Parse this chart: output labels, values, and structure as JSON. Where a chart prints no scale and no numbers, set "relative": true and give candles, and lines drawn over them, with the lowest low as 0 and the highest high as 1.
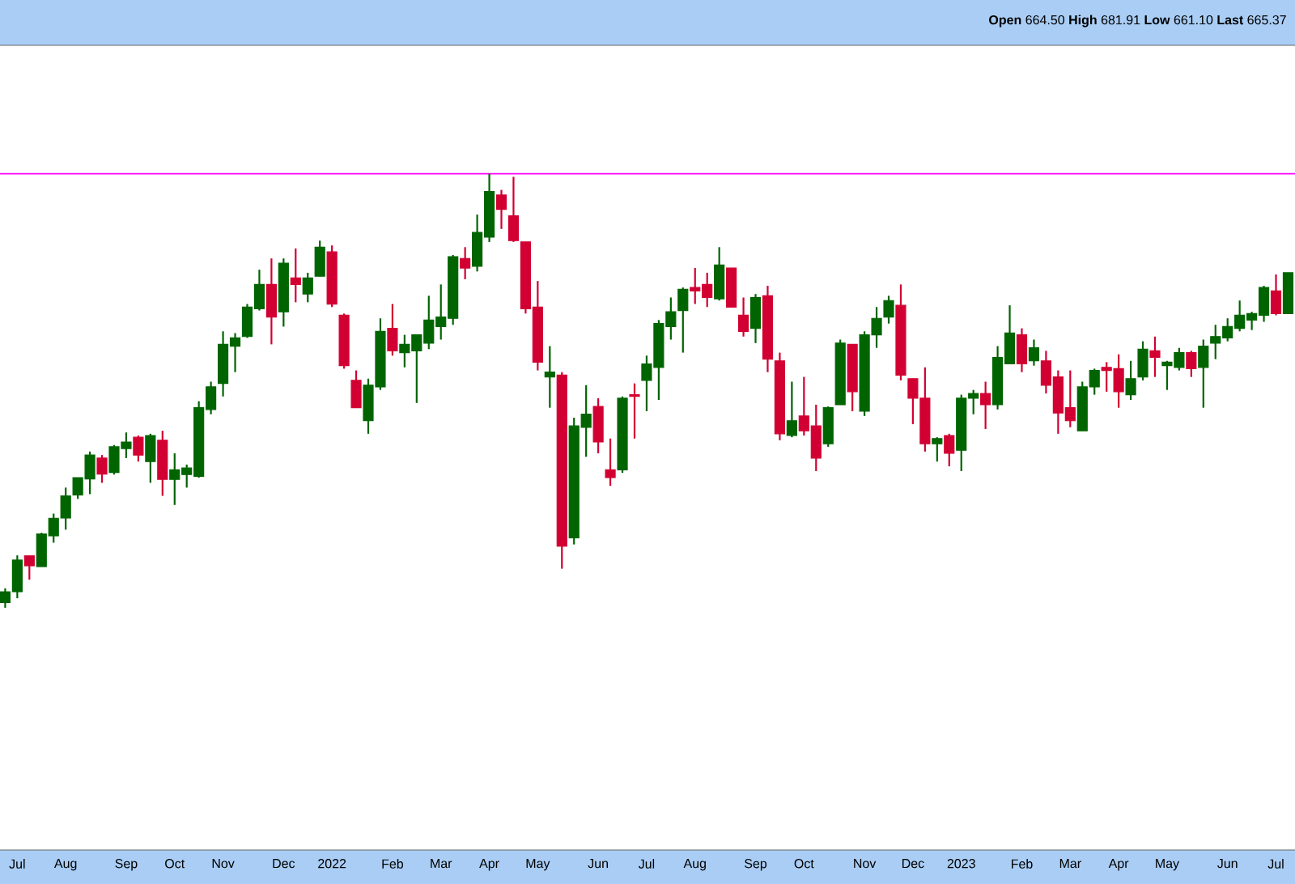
{
  "chart_data": {
    "type": "candlestick",
    "relative": true,
    "annotations": [
      "**Open** 664.50  **High** 681.91  **Low** 661.10  **Last** 665.37"
    ],
    "x": [
      "2021-06-28",
      "2021-07-05",
      "2021-07-12",
      "2021-07-19",
      "2021-07-26",
      "2021-08-02",
      "2021-08-09",
      "2021-08-16",
      "2021-08-23",
      "2021-08-30",
      "2021-09-06",
      "2021-09-13",
      "2021-09-20",
      "2021-09-27",
      "2021-10-04",
      "2021-10-11",
      "2021-10-18",
      "2021-10-25",
      "2021-11-01",
      "2021-11-08",
      "2021-11-15",
      "2021-11-22",
      "2021-11-29",
      "2021-12-06",
      "2021-12-13",
      "2021-12-20",
      "2021-12-27",
      "2022-01-03",
      "2022-01-10",
      "2022-01-17",
      "2022-01-24",
      "2022-01-31",
      "2022-02-07",
      "2022-02-14",
      "2022-02-21",
      "2022-02-28",
      "2022-03-07",
      "2022-03-14",
      "2022-03-21",
      "2022-03-28",
      "2022-04-04",
      "2022-04-11",
      "2022-04-18",
      "2022-04-25",
      "2022-05-02",
      "2022-05-09",
      "2022-05-16",
      "2022-05-23",
      "2022-05-30",
      "2022-06-06",
      "2022-06-13",
      "2022-06-20",
      "2022-06-27",
      "2022-07-04",
      "2022-07-11",
      "2022-07-18",
      "2022-07-25",
      "2022-08-01",
      "2022-08-08",
      "2022-08-15",
      "2022-08-22",
      "2022-08-29",
      "2022-09-05",
      "2022-09-12",
      "2022-09-19",
      "2022-09-26",
      "2022-10-03",
      "2022-10-10",
      "2022-10-17",
      "2022-10-24",
      "2022-10-31",
      "2022-11-07",
      "2022-11-14",
      "2022-11-21",
      "2022-11-28",
      "2022-12-05",
      "2022-12-12",
      "2022-12-19",
      "2022-12-26",
      "2023-01-02",
      "2023-01-09",
      "2023-01-16",
      "2023-01-23",
      "2023-01-30",
      "2023-02-06",
      "2023-02-13",
      "2023-02-20",
      "2023-02-27",
      "2023-03-06",
      "2023-03-13",
      "2023-03-20",
      "2023-03-27",
      "2023-04-03",
      "2023-04-10",
      "2023-04-17",
      "2023-04-24",
      "2023-05-01",
      "2023-05-08",
      "2023-05-15",
      "2023-05-22",
      "2023-05-29",
      "2023-06-05",
      "2023-06-12",
      "2023-06-19",
      "2023-06-26",
      "2023-07-03",
      "2023-07-10"
    ],
    "ohlc": [
      [
        0.012,
        0.045,
        0,
        0.037
      ],
      [
        0.037,
        0.121,
        0.022,
        0.11
      ],
      [
        0.12,
        0.12,
        0.065,
        0.097
      ],
      [
        0.095,
        0.173,
        0.095,
        0.17
      ],
      [
        0.166,
        0.217,
        0.15,
        0.206
      ],
      [
        0.207,
        0.277,
        0.18,
        0.258
      ],
      [
        0.26,
        0.3,
        0.251,
        0.3
      ],
      [
        0.297,
        0.36,
        0.262,
        0.352
      ],
      [
        0.345,
        0.352,
        0.288,
        0.308
      ],
      [
        0.312,
        0.375,
        0.307,
        0.371
      ],
      [
        0.367,
        0.404,
        0.345,
        0.382
      ],
      [
        0.393,
        0.397,
        0.337,
        0.352
      ],
      [
        0.337,
        0.401,
        0.288,
        0.397
      ],
      [
        0.386,
        0.408,
        0.258,
        0.296
      ],
      [
        0.296,
        0.356,
        0.237,
        0.318
      ],
      [
        0.307,
        0.33,
        0.277,
        0.322
      ],
      [
        0.303,
        0.476,
        0.3,
        0.461
      ],
      [
        0.457,
        0.521,
        0.446,
        0.509
      ],
      [
        0.517,
        0.637,
        0.487,
        0.607
      ],
      [
        0.603,
        0.633,
        0.543,
        0.622
      ],
      [
        0.625,
        0.7,
        0.622,
        0.693
      ],
      [
        0.689,
        0.779,
        0.685,
        0.745
      ],
      [
        0.745,
        0.805,
        0.607,
        0.67
      ],
      [
        0.682,
        0.805,
        0.648,
        0.794
      ],
      [
        0.76,
        0.828,
        0.704,
        0.745
      ],
      [
        0.723,
        0.772,
        0.704,
        0.76
      ],
      [
        0.764,
        0.846,
        0.764,
        0.831
      ],
      [
        0.82,
        0.835,
        0.693,
        0.7
      ],
      [
        0.674,
        0.678,
        0.551,
        0.558
      ],
      [
        0.524,
        0.547,
        0.461,
        0.461
      ],
      [
        0.431,
        0.528,
        0.401,
        0.513
      ],
      [
        0.509,
        0.667,
        0.502,
        0.637
      ],
      [
        0.644,
        0.7,
        0.581,
        0.592
      ],
      [
        0.588,
        0.629,
        0.554,
        0.607
      ],
      [
        0.592,
        0.629,
        0.472,
        0.629
      ],
      [
        0.61,
        0.719,
        0.596,
        0.663
      ],
      [
        0.648,
        0.745,
        0.618,
        0.67
      ],
      [
        0.667,
        0.813,
        0.652,
        0.809
      ],
      [
        0.805,
        0.831,
        0.757,
        0.783
      ],
      [
        0.787,
        0.906,
        0.775,
        0.865
      ],
      [
        0.854,
        1,
        0.843,
        0.959
      ],
      [
        0.951,
        0.963,
        0.873,
        0.918
      ],
      [
        0.903,
        0.993,
        0.843,
        0.846
      ],
      [
        0.843,
        0.843,
        0.678,
        0.689
      ],
      [
        0.693,
        0.753,
        0.547,
        0.566
      ],
      [
        0.532,
        0.603,
        0.461,
        0.543
      ],
      [
        0.536,
        0.543,
        0.09,
        0.142
      ],
      [
        0.161,
        0.438,
        0.146,
        0.419
      ],
      [
        0.416,
        0.513,
        0.348,
        0.446
      ],
      [
        0.464,
        0.483,
        0.356,
        0.382
      ],
      [
        0.318,
        0.39,
        0.281,
        0.3
      ],
      [
        0.318,
        0.487,
        0.311,
        0.483
      ],
      [
        0.491,
        0.517,
        0.39,
        0.487
      ],
      [
        0.524,
        0.581,
        0.453,
        0.562
      ],
      [
        0.554,
        0.663,
        0.479,
        0.655
      ],
      [
        0.648,
        0.715,
        0.618,
        0.682
      ],
      [
        0.685,
        0.738,
        0.588,
        0.734
      ],
      [
        0.738,
        0.783,
        0.7,
        0.73
      ],
      [
        0.745,
        0.772,
        0.693,
        0.715
      ],
      [
        0.712,
        0.831,
        0.708,
        0.79
      ],
      [
        0.783,
        0.783,
        0.693,
        0.693
      ],
      [
        0.674,
        0.715,
        0.625,
        0.637
      ],
      [
        0.644,
        0.723,
        0.61,
        0.715
      ],
      [
        0.719,
        0.742,
        0.543,
        0.573
      ],
      [
        0.569,
        0.588,
        0.386,
        0.401
      ],
      [
        0.397,
        0.521,
        0.393,
        0.431
      ],
      [
        0.442,
        0.532,
        0.397,
        0.408
      ],
      [
        0.419,
        0.468,
        0.315,
        0.345
      ],
      [
        0.378,
        0.464,
        0.371,
        0.461
      ],
      [
        0.468,
        0.618,
        0.468,
        0.61
      ],
      [
        0.607,
        0.607,
        0.453,
        0.498
      ],
      [
        0.453,
        0.637,
        0.442,
        0.629
      ],
      [
        0.629,
        0.693,
        0.599,
        0.667
      ],
      [
        0.67,
        0.719,
        0.655,
        0.708
      ],
      [
        0.697,
        0.745,
        0.524,
        0.536
      ],
      [
        0.528,
        0.528,
        0.423,
        0.483
      ],
      [
        0.483,
        0.554,
        0.36,
        0.378
      ],
      [
        0.378,
        0.393,
        0.337,
        0.39
      ],
      [
        0.397,
        0.401,
        0.326,
        0.356
      ],
      [
        0.363,
        0.491,
        0.315,
        0.483
      ],
      [
        0.483,
        0.502,
        0.446,
        0.494
      ],
      [
        0.494,
        0.521,
        0.412,
        0.468
      ],
      [
        0.468,
        0.603,
        0.457,
        0.577
      ],
      [
        0.562,
        0.697,
        0.562,
        0.633
      ],
      [
        0.629,
        0.644,
        0.543,
        0.562
      ],
      [
        0.569,
        0.618,
        0.558,
        0.599
      ],
      [
        0.569,
        0.592,
        0.494,
        0.513
      ],
      [
        0.532,
        0.547,
        0.401,
        0.449
      ],
      [
        0.461,
        0.547,
        0.416,
        0.431
      ],
      [
        0.408,
        0.521,
        0.408,
        0.509
      ],
      [
        0.509,
        0.551,
        0.491,
        0.547
      ],
      [
        0.554,
        0.566,
        0.498,
        0.547
      ],
      [
        0.551,
        0.584,
        0.461,
        0.498
      ],
      [
        0.491,
        0.569,
        0.479,
        0.528
      ],
      [
        0.532,
        0.614,
        0.524,
        0.596
      ],
      [
        0.592,
        0.625,
        0.532,
        0.577
      ],
      [
        0.558,
        0.569,
        0.502,
        0.566
      ],
      [
        0.554,
        0.599,
        0.547,
        0.588
      ],
      [
        0.588,
        0.592,
        0.532,
        0.551
      ],
      [
        0.554,
        0.618,
        0.461,
        0.603
      ],
      [
        0.61,
        0.652,
        0.573,
        0.625
      ],
      [
        0.622,
        0.667,
        0.614,
        0.648
      ],
      [
        0.644,
        0.708,
        0.637,
        0.674
      ],
      [
        0.663,
        0.682,
        0.64,
        0.678
      ],
      [
        0.674,
        0.742,
        0.659,
        0.738
      ],
      [
        0.73,
        0.768,
        0.674,
        0.678
      ],
      [
        0.678,
        0.772,
        0.678,
        0.772
      ]
    ],
    "xlim": [
      "2021-06-25",
      "2023-07-14"
    ],
    "xticks": [
      {
        "value": "2021-07-05",
        "label": "Jul"
      },
      {
        "value": "2021-08-02",
        "label": "Aug"
      },
      {
        "value": "2021-09-06",
        "label": "Sep"
      },
      {
        "value": "2021-10-04",
        "label": "Oct"
      },
      {
        "value": "2021-11-01",
        "label": "Nov"
      },
      {
        "value": "2021-12-06",
        "label": "Dec"
      },
      {
        "value": "2022-01-03",
        "label": "2022"
      },
      {
        "value": "2022-02-07",
        "label": "Feb"
      },
      {
        "value": "2022-03-07",
        "label": "Mar"
      },
      {
        "value": "2022-04-04",
        "label": "Apr"
      },
      {
        "value": "2022-05-02",
        "label": "May"
      },
      {
        "value": "2022-06-06",
        "label": "Jun"
      },
      {
        "value": "2022-07-04",
        "label": "Jul"
      },
      {
        "value": "2022-08-01",
        "label": "Aug"
      },
      {
        "value": "2022-09-05",
        "label": "Sep"
      },
      {
        "value": "2022-10-03",
        "label": "Oct"
      },
      {
        "value": "2022-11-07",
        "label": "Nov"
      },
      {
        "value": "2022-12-05",
        "label": "Dec"
      },
      {
        "value": "2023-01-02",
        "label": "2023"
      },
      {
        "value": "2023-02-06",
        "label": "Feb"
      },
      {
        "value": "2023-03-06",
        "label": "Mar"
      },
      {
        "value": "2023-04-03",
        "label": "Apr"
      },
      {
        "value": "2023-05-01",
        "label": "May"
      },
      {
        "value": "2023-06-05",
        "label": "Jun"
      },
      {
        "value": "2023-07-03",
        "label": "Jul"
      }
    ],
    "ref_lines": [
      {
        "axis": "y",
        "value": 1,
        "color": "#ff00ff"
      }
    ]
  }
}
